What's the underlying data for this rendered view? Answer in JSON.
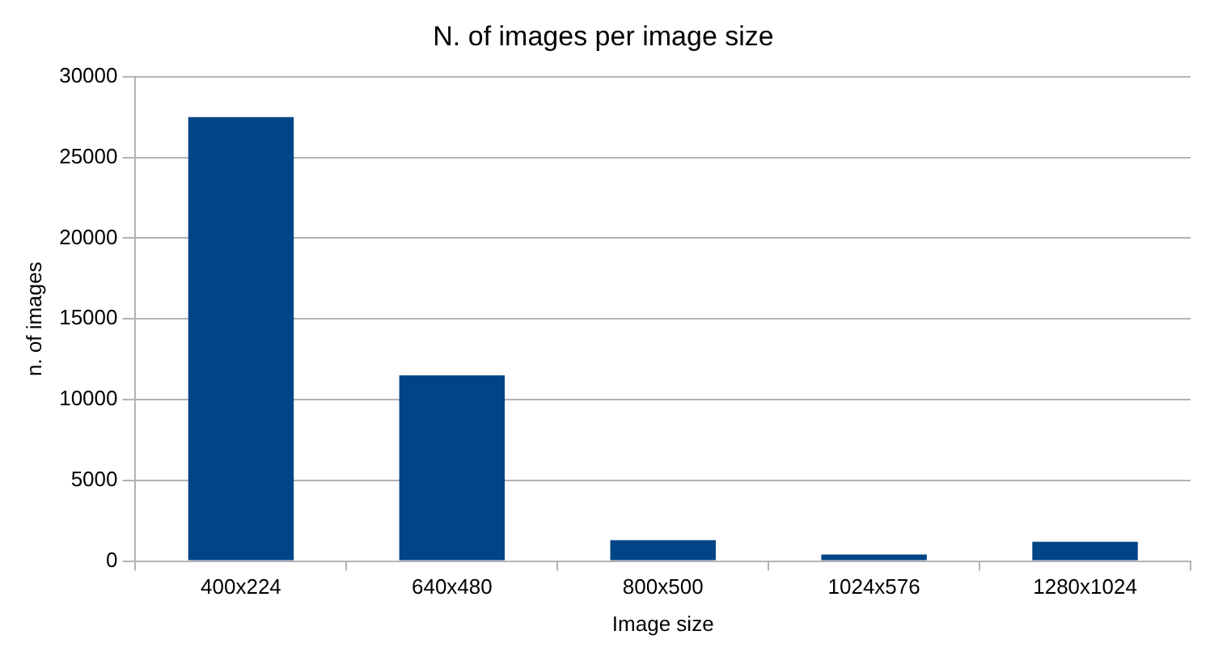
{
  "chart_data": {
    "type": "bar",
    "title": "N. of images per image size",
    "xlabel": "Image size",
    "ylabel": "n. of images",
    "categories": [
      "400x224",
      "640x480",
      "800x500",
      "1024x576",
      "1280x1024"
    ],
    "values": [
      27500,
      11500,
      1300,
      400,
      1200
    ],
    "color": "#004586",
    "ylim": [
      0,
      30000
    ],
    "yticks": [
      0,
      5000,
      10000,
      15000,
      20000,
      25000,
      30000
    ],
    "grid": "y",
    "legend": false
  }
}
